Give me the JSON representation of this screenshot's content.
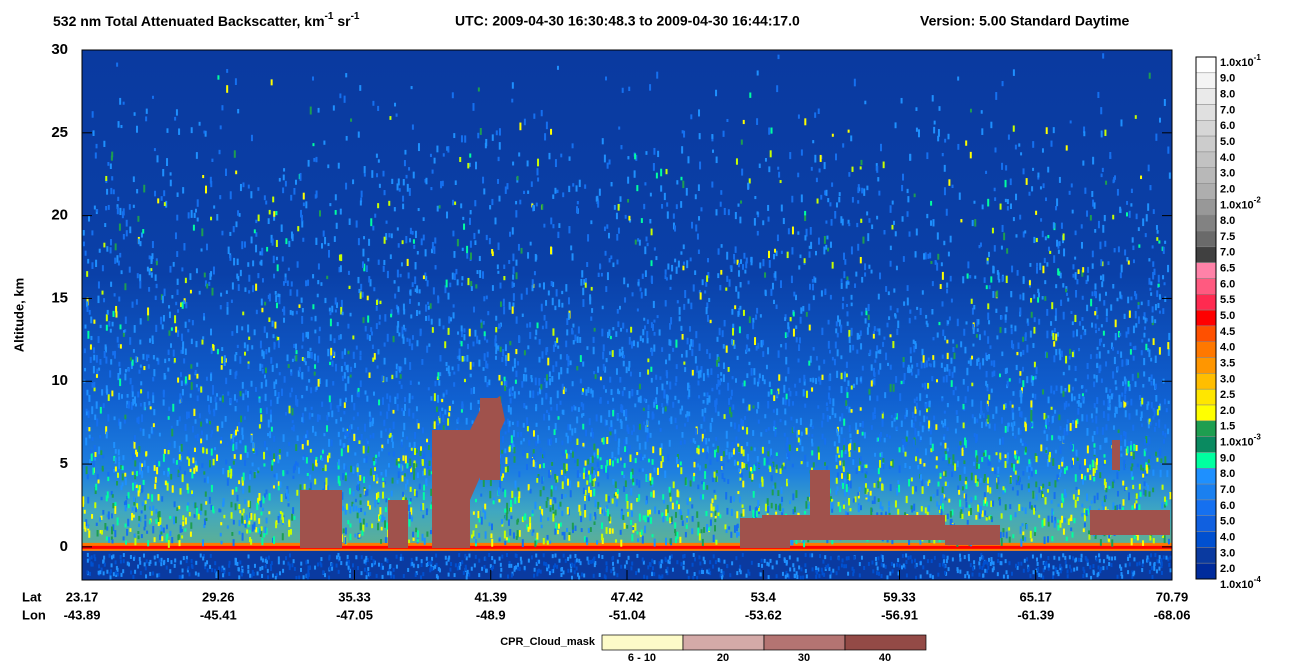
{
  "chart_data": {
    "type": "heatmap",
    "title": {
      "main": "532 nm Total Attenuated Backscatter, km",
      "exp1": "-1",
      "unit2": " sr",
      "exp2": "-1",
      "time": "UTC:  2009-04-30 16:30:48.3  to  2009-04-30 16:44:17.0",
      "version": "Version: 5.00  Standard  Daytime"
    },
    "ylabel": "Altitude, km",
    "ylim": [
      -2,
      30
    ],
    "yticks": [
      0,
      5,
      10,
      15,
      20,
      25,
      30
    ],
    "x_row_labels": [
      "Lat",
      "Lon"
    ],
    "lat_ticks": [
      23.17,
      29.26,
      35.33,
      41.39,
      47.42,
      53.4,
      59.33,
      65.17,
      70.79
    ],
    "lon_ticks": [
      -43.89,
      -45.41,
      -47.05,
      -48.9,
      -51.04,
      -53.62,
      -56.91,
      -61.39,
      -68.06
    ],
    "colorbar": {
      "labels": [
        {
          "base": "1.0x10",
          "exp": "-1"
        },
        "9.0",
        "8.0",
        "7.0",
        "6.0",
        "5.0",
        "4.0",
        "3.0",
        "2.0",
        {
          "base": "1.0x10",
          "exp": "-2"
        },
        "8.0",
        "7.5",
        "7.0",
        "6.5",
        "6.0",
        "5.5",
        "5.0",
        "4.5",
        "4.0",
        "3.5",
        "3.0",
        "2.5",
        "2.0",
        "1.5",
        {
          "base": "1.0x10",
          "exp": "-3"
        },
        "9.0",
        "8.0",
        "7.0",
        "6.0",
        "5.0",
        "4.0",
        "3.0",
        "2.0",
        {
          "base": "1.0x10",
          "exp": "-4"
        }
      ],
      "colors": [
        "#ffffff",
        "#f4f4f4",
        "#eaeaea",
        "#e0e0e0",
        "#d6d6d6",
        "#cccccc",
        "#c2c2c2",
        "#b8b8b8",
        "#aeaeae",
        "#989898",
        "#828282",
        "#6a6a6a",
        "#404040",
        "#ff82a8",
        "#ff5a80",
        "#ff2a50",
        "#ff0000",
        "#ff5000",
        "#ff7800",
        "#ff9600",
        "#ffbe00",
        "#ffe600",
        "#ffff00",
        "#1e9e50",
        "#0a8a60",
        "#00ffa0",
        "#1e90ff",
        "#1a80f0",
        "#1570f0",
        "#1060e0",
        "#0050d0",
        "#0a3aa0",
        "#002b9c"
      ]
    },
    "cloud_mask": {
      "title": "CPR_Cloud_mask",
      "categories": [
        "6 - 10",
        "20",
        "30",
        "40"
      ],
      "colors": [
        "#fdfbc8",
        "#d4aaa8",
        "#b47472",
        "#934a46"
      ]
    }
  }
}
